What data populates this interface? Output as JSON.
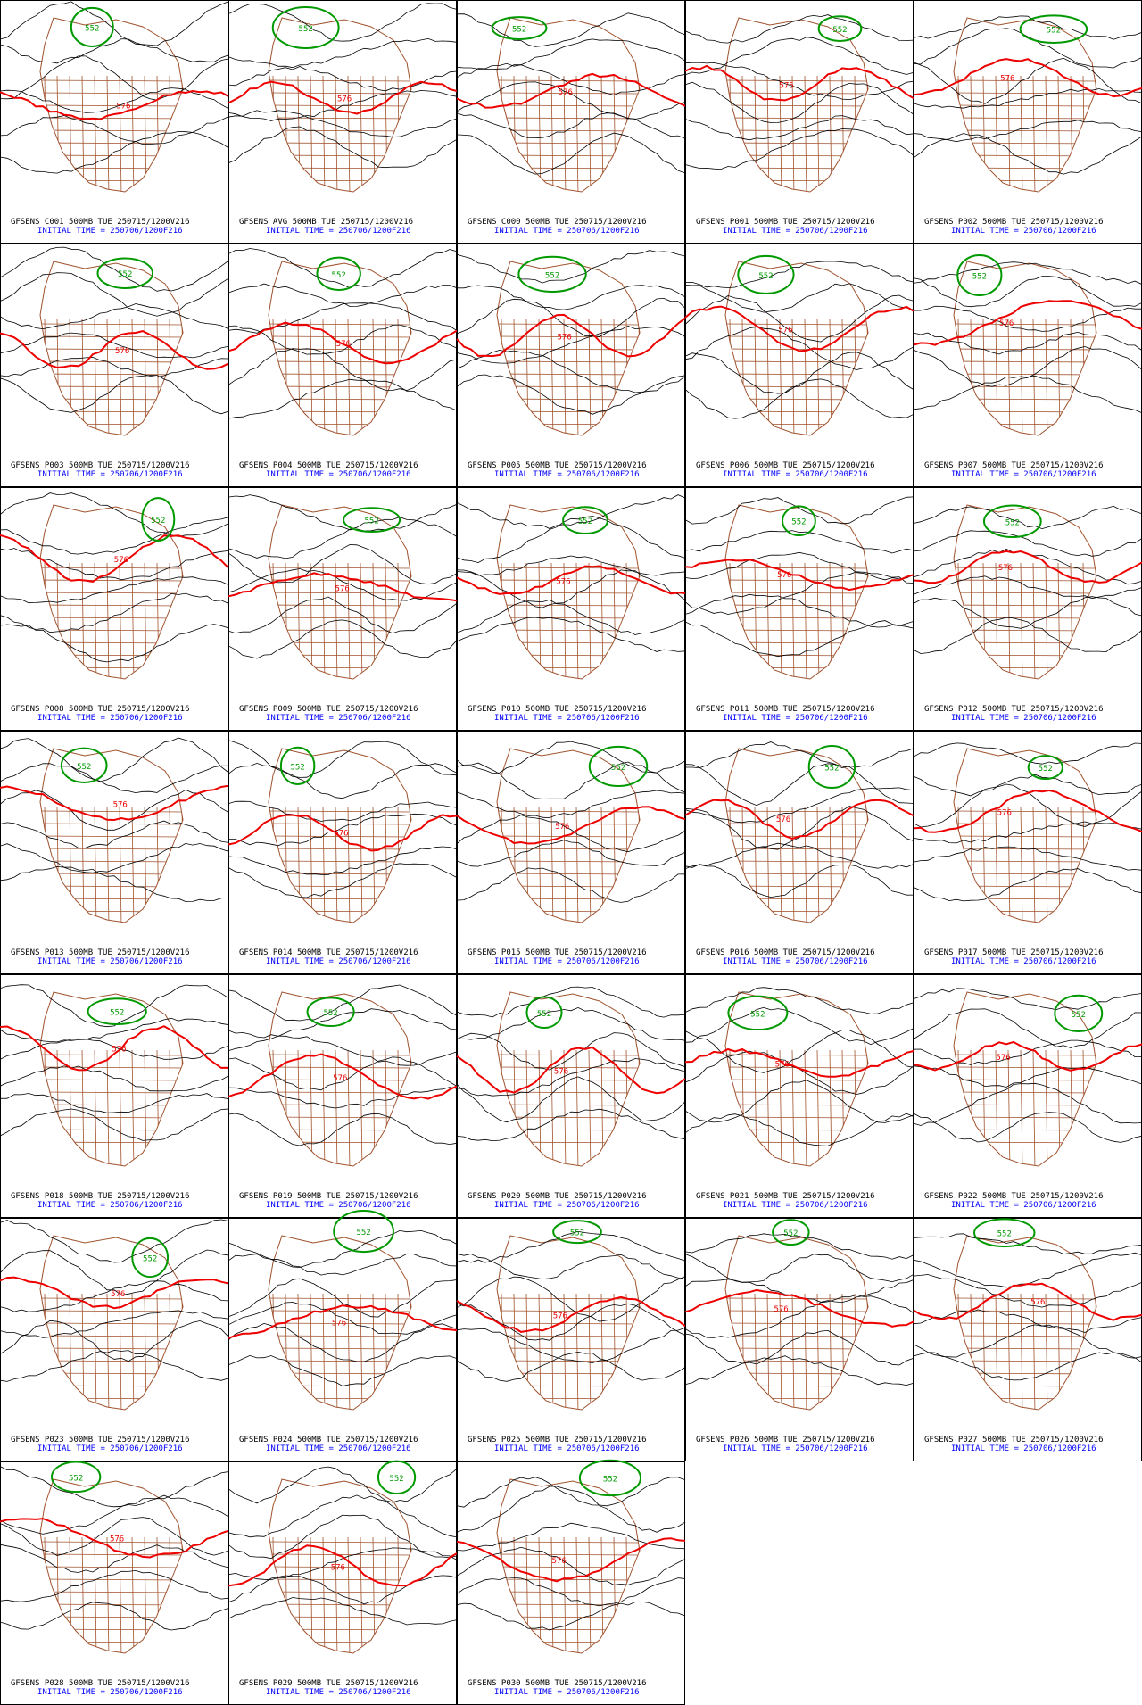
{
  "initial_time": "INITIAL TIME = 250706/1200F216",
  "contour_labels": {
    "high": "576",
    "low": "552"
  },
  "panels": [
    "GFSENS C001 500MB TUE 250715/1200V216",
    "GFSENS AVG 500MB TUE 250715/1200V216",
    "GFSENS C000 500MB TUE 250715/1200V216",
    "GFSENS P001 500MB TUE 250715/1200V216",
    "GFSENS P002 500MB TUE 250715/1200V216",
    "GFSENS P003 500MB TUE 250715/1200V216",
    "GFSENS P004 500MB TUE 250715/1200V216",
    "GFSENS P005 500MB TUE 250715/1200V216",
    "GFSENS P006 500MB TUE 250715/1200V216",
    "GFSENS P007 500MB TUE 250715/1200V216",
    "GFSENS P008 500MB TUE 250715/1200V216",
    "GFSENS P009 500MB TUE 250715/1200V216",
    "GFSENS P010 500MB TUE 250715/1200V216",
    "GFSENS P011 500MB TUE 250715/1200V216",
    "GFSENS P012 500MB TUE 250715/1200V216",
    "GFSENS P013 500MB TUE 250715/1200V216",
    "GFSENS P014 500MB TUE 250715/1200V216",
    "GFSENS P015 500MB TUE 250715/1200V216",
    "GFSENS P016 500MB TUE 250715/1200V216",
    "GFSENS P017 500MB TUE 250715/1200V216",
    "GFSENS P018 500MB TUE 250715/1200V216",
    "GFSENS P019 500MB TUE 250715/1200V216",
    "GFSENS P020 500MB TUE 250715/1200V216",
    "GFSENS P021 500MB TUE 250715/1200V216",
    "GFSENS P022 500MB TUE 250715/1200V216",
    "GFSENS P023 500MB TUE 250715/1200V216",
    "GFSENS P024 500MB TUE 250715/1200V216",
    "GFSENS P025 500MB TUE 250715/1200V216",
    "GFSENS P026 500MB TUE 250715/1200V216",
    "GFSENS P027 500MB TUE 250715/1200V216",
    "GFSENS P028 500MB TUE 250715/1200V216",
    "GFSENS P029 500MB TUE 250715/1200V216",
    "GFSENS P030 500MB TUE 250715/1200V216"
  ]
}
